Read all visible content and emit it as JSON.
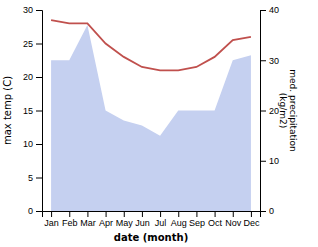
{
  "chart_data": {
    "type": "line",
    "categories": [
      "Jan",
      "Feb",
      "Mar",
      "Apr",
      "May",
      "Jun",
      "Jul",
      "Aug",
      "Sep",
      "Oct",
      "Nov",
      "Dec"
    ],
    "xlabel": "date (month)",
    "ylabel": "max temp (C)",
    "y2label": "med. precipitation\n(kg/m2)",
    "ylim": [
      0,
      30
    ],
    "yticks": [
      0,
      5,
      10,
      15,
      20,
      25,
      30
    ],
    "y2lim": [
      0,
      40
    ],
    "y2ticks": [
      0,
      10,
      20,
      30,
      40
    ],
    "series": [
      {
        "type": "area",
        "axis": "y2",
        "color": "#c5d0f0",
        "values": [
          30.0,
          30.0,
          37.0,
          20.0,
          18.0,
          17.0,
          15.0,
          20.0,
          20.0,
          20.0,
          30.0,
          31.0
        ]
      },
      {
        "type": "line",
        "color": "#c0504d",
        "values": [
          28.5,
          28.0,
          28.0,
          25.0,
          23.0,
          21.5,
          21.0,
          21.0,
          21.5,
          23.0,
          25.5,
          26.0
        ]
      }
    ]
  }
}
